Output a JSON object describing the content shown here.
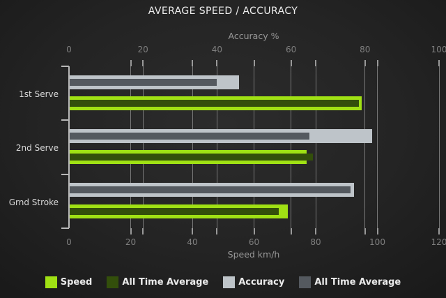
{
  "chart_data": {
    "type": "bar",
    "orientation": "horizontal",
    "title": "AVERAGE SPEED / ACCURACY",
    "categories": [
      "1st Serve",
      "2nd Serve",
      "Grnd Stroke"
    ],
    "axes": {
      "top": {
        "label": "Accuracy %",
        "min": 0,
        "max": 100,
        "ticks": [
          0,
          20,
          40,
          60,
          80,
          100
        ]
      },
      "bottom": {
        "label": "Speed km/h",
        "min": 0,
        "max": 120,
        "ticks": [
          0,
          20,
          40,
          60,
          80,
          100,
          120
        ]
      }
    },
    "series": [
      {
        "name": "Speed",
        "axis": "bottom",
        "color": "#A0E114",
        "values": [
          95,
          77,
          71
        ]
      },
      {
        "name": "All Time Average",
        "axis": "bottom",
        "color": "#334F0B",
        "values": [
          94,
          79,
          68
        ]
      },
      {
        "name": "Accuracy",
        "axis": "top",
        "color": "#BEC4C9",
        "values": [
          46,
          82,
          77
        ]
      },
      {
        "name": "All Time Average",
        "axis": "top",
        "color": "#54595F",
        "values": [
          40,
          65,
          76
        ]
      }
    ],
    "legend": [
      {
        "label": "Speed",
        "color": "#A0E114"
      },
      {
        "label": "All Time Average",
        "color": "#334F0B"
      },
      {
        "label": "Accuracy",
        "color": "#BEC4C9"
      },
      {
        "label": "All Time Average",
        "color": "#54595F"
      }
    ],
    "legend_position": "bottom",
    "grid": true,
    "colors": {
      "background": "#242424",
      "title": "#ededed",
      "axis_title": "#989898",
      "tick_label": "#7f7f7f",
      "category_label": "#d9d9d9",
      "gridline": "#787878",
      "tick": "#9a9a9a",
      "axis": "#b8b8b8",
      "legend_text": "#eaeaea"
    }
  }
}
